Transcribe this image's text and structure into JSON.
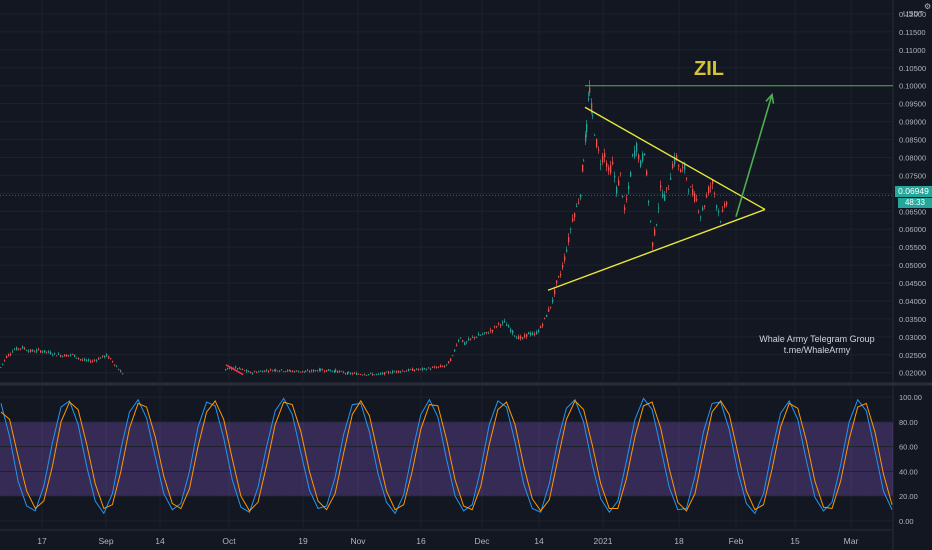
{
  "chart_data": [
    {
      "type": "candlestick",
      "title": "ZIL",
      "currency": "USDT",
      "y_ticks": [
        "0.12000",
        "0.11500",
        "0.11000",
        "0.10500",
        "0.10000",
        "0.09500",
        "0.09000",
        "0.08500",
        "0.08000",
        "0.07500",
        "0.07000",
        "0.06500",
        "0.06000",
        "0.05500",
        "0.05000",
        "0.04500",
        "0.04000",
        "0.03500",
        "0.03000",
        "0.02500",
        "0.02000"
      ],
      "y_tick_values": [
        0.12,
        0.115,
        0.11,
        0.105,
        0.1,
        0.095,
        0.09,
        0.085,
        0.08,
        0.075,
        0.07,
        0.065,
        0.06,
        0.055,
        0.05,
        0.045,
        0.04,
        0.035,
        0.03,
        0.025,
        0.02
      ],
      "ylim": [
        0.0177,
        0.1225
      ],
      "x_ticks": [
        "17",
        "Sep",
        "14",
        "Oct",
        "19",
        "Nov",
        "16",
        "Dec",
        "14",
        "2021",
        "18",
        "Feb",
        "15",
        "Mar"
      ],
      "last_price": "0.06949",
      "countdown": "48:33",
      "price_path": [
        [
          0,
          0.0215
        ],
        [
          6,
          0.0245
        ],
        [
          14,
          0.0265
        ],
        [
          22,
          0.027
        ],
        [
          30,
          0.026
        ],
        [
          38,
          0.0262
        ],
        [
          46,
          0.0258
        ],
        [
          54,
          0.0252
        ],
        [
          62,
          0.0248
        ],
        [
          72,
          0.025
        ],
        [
          82,
          0.0235
        ],
        [
          92,
          0.0232
        ],
        [
          100,
          0.0242
        ],
        [
          106,
          0.0248
        ],
        [
          112,
          0.0232
        ],
        [
          118,
          0.021
        ],
        [
          123,
          0.0195
        ],
        [
          225,
          0.0208
        ],
        [
          233,
          0.0215
        ],
        [
          240,
          0.021
        ],
        [
          250,
          0.02
        ],
        [
          262,
          0.0205
        ],
        [
          275,
          0.0208
        ],
        [
          290,
          0.0205
        ],
        [
          305,
          0.0203
        ],
        [
          320,
          0.0208
        ],
        [
          335,
          0.0205
        ],
        [
          348,
          0.0198
        ],
        [
          378,
          0.0195
        ],
        [
          390,
          0.0202
        ],
        [
          400,
          0.0205
        ],
        [
          412,
          0.0208
        ],
        [
          424,
          0.021
        ],
        [
          436,
          0.0215
        ],
        [
          446,
          0.022
        ],
        [
          452,
          0.0245
        ],
        [
          456,
          0.028
        ],
        [
          460,
          0.03
        ],
        [
          464,
          0.028
        ],
        [
          468,
          0.029
        ],
        [
          474,
          0.03
        ],
        [
          480,
          0.0305
        ],
        [
          486,
          0.031
        ],
        [
          492,
          0.032
        ],
        [
          498,
          0.0335
        ],
        [
          504,
          0.034
        ],
        [
          510,
          0.032
        ],
        [
          516,
          0.03
        ],
        [
          522,
          0.0295
        ],
        [
          528,
          0.031
        ],
        [
          534,
          0.0305
        ],
        [
          540,
          0.0325
        ],
        [
          546,
          0.036
        ],
        [
          552,
          0.04
        ],
        [
          556,
          0.045
        ],
        [
          560,
          0.0475
        ],
        [
          564,
          0.052
        ],
        [
          568,
          0.057
        ],
        [
          572,
          0.063
        ],
        [
          576,
          0.066
        ],
        [
          580,
          0.07
        ],
        [
          583,
          0.08
        ],
        [
          586,
          0.088
        ],
        [
          589,
          0.099
        ],
        [
          592,
          0.091
        ],
        [
          596,
          0.084
        ],
        [
          600,
          0.079
        ],
        [
          604,
          0.081
        ],
        [
          608,
          0.076
        ],
        [
          612,
          0.078
        ],
        [
          616,
          0.071
        ],
        [
          620,
          0.075
        ],
        [
          624,
          0.065
        ],
        [
          628,
          0.071
        ],
        [
          632,
          0.08
        ],
        [
          636,
          0.083
        ],
        [
          640,
          0.078
        ],
        [
          644,
          0.082
        ],
        [
          648,
          0.068
        ],
        [
          652,
          0.056
        ],
        [
          656,
          0.062
        ],
        [
          660,
          0.071
        ],
        [
          664,
          0.069
        ],
        [
          668,
          0.072
        ],
        [
          672,
          0.078
        ],
        [
          676,
          0.08
        ],
        [
          680,
          0.076
        ],
        [
          684,
          0.077
        ],
        [
          688,
          0.072
        ],
        [
          692,
          0.07
        ],
        [
          696,
          0.068
        ],
        [
          700,
          0.064
        ],
        [
          704,
          0.067
        ],
        [
          708,
          0.071
        ],
        [
          712,
          0.073
        ],
        [
          716,
          0.067
        ],
        [
          720,
          0.063
        ],
        [
          724,
          0.066
        ],
        [
          728,
          0.06949
        ]
      ],
      "annotations": {
        "resistance_level": 0.1,
        "triangle_upper": [
          [
            585,
            0.094
          ],
          [
            765,
            0.0655
          ]
        ],
        "triangle_lower": [
          [
            548,
            0.043
          ],
          [
            765,
            0.0655
          ]
        ],
        "breakout_arrow": [
          [
            736,
            0.0635
          ],
          [
            772,
            0.0975
          ]
        ],
        "red_mark": [
          [
            226,
            0.0222
          ],
          [
            243,
            0.0195
          ]
        ]
      },
      "watermark": [
        "Whale Army Telegram Group",
        "t.me/WhaleArmy"
      ]
    },
    {
      "type": "line",
      "title": "",
      "y_ticks": [
        "100.00",
        "80.00",
        "60.00",
        "40.00",
        "20.00",
        "0.00"
      ],
      "y_tick_values": [
        100,
        80,
        60,
        40,
        20,
        0
      ],
      "ylim": [
        -5,
        105
      ],
      "band": [
        20,
        80
      ],
      "series": [
        {
          "color": "#2196f3",
          "values": [
            95,
            68,
            32,
            12,
            8,
            28,
            63,
            92,
            97,
            78,
            44,
            16,
            6,
            22,
            58,
            88,
            98,
            83,
            52,
            22,
            9,
            14,
            40,
            76,
            96,
            93,
            67,
            33,
            11,
            7,
            27,
            60,
            89,
            99,
            86,
            55,
            25,
            10,
            12,
            35,
            70,
            94,
            95,
            72,
            38,
            15,
            6,
            21,
            55,
            86,
            98,
            84,
            50,
            20,
            8,
            13,
            42,
            78,
            97,
            92,
            64,
            30,
            10,
            7,
            30,
            65,
            91,
            98,
            80,
            46,
            18,
            7,
            16,
            48,
            82,
            99,
            90,
            59,
            27,
            9,
            10,
            36,
            72,
            95,
            96,
            74,
            40,
            14,
            6,
            22,
            57,
            87,
            97,
            82,
            49,
            19,
            8,
            15,
            45,
            80,
            98,
            89,
            57,
            24,
            9
          ]
        },
        {
          "color": "#ff9800",
          "values": [
            88,
            82,
            52,
            24,
            10,
            16,
            44,
            80,
            96,
            90,
            62,
            30,
            10,
            13,
            40,
            75,
            95,
            92,
            68,
            36,
            14,
            10,
            26,
            60,
            88,
            97,
            82,
            50,
            20,
            8,
            15,
            45,
            78,
            96,
            94,
            72,
            40,
            16,
            9,
            22,
            55,
            86,
            97,
            85,
            54,
            24,
            9,
            13,
            40,
            74,
            94,
            93,
            66,
            33,
            12,
            9,
            28,
            62,
            90,
            96,
            78,
            45,
            18,
            8,
            17,
            50,
            82,
            97,
            90,
            62,
            30,
            10,
            10,
            34,
            68,
            93,
            96,
            75,
            42,
            15,
            8,
            22,
            56,
            88,
            97,
            86,
            55,
            24,
            9,
            13,
            42,
            76,
            95,
            91,
            65,
            32,
            11,
            10,
            32,
            66,
            92,
            95,
            72,
            38,
            13
          ]
        }
      ]
    }
  ]
}
